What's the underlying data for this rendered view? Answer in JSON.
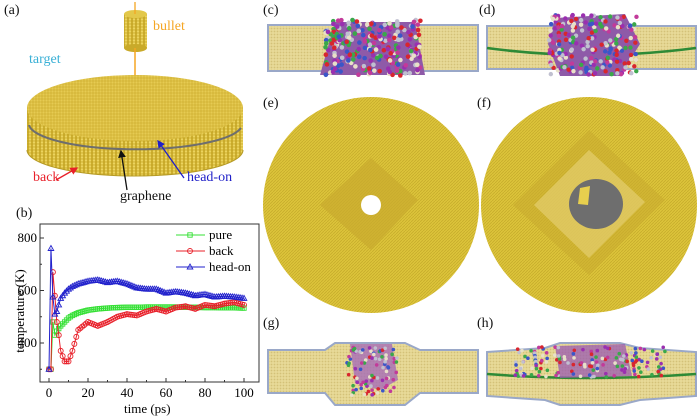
{
  "panels": {
    "a": {
      "label": "(a)",
      "annotations": {
        "bullet": "bullet",
        "target": "target",
        "back": "back",
        "graphene": "graphene",
        "head_on": "head-on"
      }
    },
    "b": {
      "label": "(b)"
    },
    "c": {
      "label": "(c)"
    },
    "d": {
      "label": "(d)"
    },
    "e": {
      "label": "(e)"
    },
    "f": {
      "label": "(f)"
    },
    "g": {
      "label": "(g)"
    },
    "h": {
      "label": "(h)"
    }
  },
  "colors": {
    "atom_gold": "#d9bd3c",
    "atom_gold_dark": "#b99a22",
    "graphene_gray": "#6e6e6e",
    "bullet_arrow": "#f5a623",
    "target_text": "#3ab0d6",
    "back_red": "#e8202a",
    "head_on_blue": "#1f1fc8",
    "pure_green": "#35e035",
    "slab_fill": "#e6d896",
    "slab_edge": "#9aa8c8"
  },
  "chart_data": {
    "type": "line",
    "title": "",
    "xlabel": "time (ps)",
    "ylabel": "temperature (K)",
    "xlim": [
      -3,
      104
    ],
    "ylim": [
      250,
      850
    ],
    "xticks": [
      0,
      20,
      40,
      60,
      80,
      100
    ],
    "yticks": [
      400,
      600,
      800
    ],
    "grid": false,
    "legend_position": "upper right",
    "x": [
      0,
      1,
      2,
      3,
      4,
      5,
      6,
      8,
      10,
      12,
      15,
      20,
      25,
      30,
      35,
      40,
      45,
      50,
      55,
      60,
      65,
      70,
      75,
      80,
      85,
      90,
      95,
      100
    ],
    "series": [
      {
        "name": "pure",
        "color": "#35e035",
        "marker": "square",
        "values": [
          300,
          300,
          480,
          430,
          445,
          455,
          465,
          480,
          495,
          505,
          515,
          525,
          530,
          533,
          535,
          536,
          536,
          537,
          537,
          537,
          537,
          536,
          536,
          535,
          535,
          534,
          534,
          533
        ]
      },
      {
        "name": "back",
        "color": "#e8202a",
        "marker": "circle",
        "values": [
          300,
          300,
          670,
          580,
          480,
          430,
          370,
          330,
          330,
          370,
          450,
          480,
          465,
          480,
          500,
          510,
          505,
          520,
          530,
          520,
          535,
          540,
          530,
          545,
          540,
          550,
          555,
          545
        ]
      },
      {
        "name": "head-on",
        "color": "#2222cc",
        "marker": "triangle",
        "values": [
          300,
          760,
          575,
          510,
          520,
          545,
          570,
          590,
          605,
          615,
          625,
          635,
          640,
          630,
          635,
          625,
          610,
          605,
          605,
          590,
          595,
          590,
          580,
          585,
          575,
          578,
          575,
          570
        ]
      }
    ]
  }
}
